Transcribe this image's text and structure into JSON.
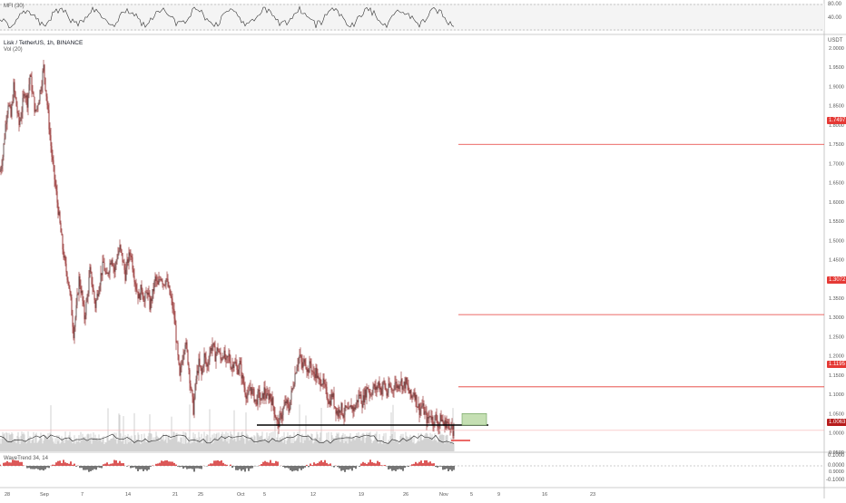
{
  "chart_data": {
    "type": "line",
    "symbol_title": "Lisk / TetherUS, 1h, BINANCE",
    "volume_label": "Vol (20)",
    "mfi_label": "MFI (30)",
    "osc_label": "WaveTrend 34, 14",
    "currency": "USDT",
    "x_ticks": [
      "28",
      "Sep",
      "7",
      "14",
      "21",
      "25",
      "Oct",
      "5",
      "12",
      "19",
      "26",
      "Nov",
      "5",
      "9",
      "16",
      "23"
    ],
    "y_ticks": [
      "2.0000",
      "1.9500",
      "1.9000",
      "1.8500",
      "1.8000",
      "1.7500",
      "1.7000",
      "1.6500",
      "1.6000",
      "1.5500",
      "1.5000",
      "1.4500",
      "1.4000",
      "1.3500",
      "1.3000",
      "1.2500",
      "1.2000",
      "1.1500",
      "1.1000",
      "1.0500",
      "1.0000",
      "0.9500",
      "0.9000"
    ],
    "ylim": [
      0.9,
      2.0
    ],
    "mfi_ticks": [
      "80.00",
      "40.00"
    ],
    "osc_ticks": [
      "0.1000",
      "0.0000",
      "-0.1000"
    ],
    "price_series": [
      {
        "i": 0,
        "v": 1.68
      },
      {
        "i": 3,
        "v": 1.72
      },
      {
        "i": 6,
        "v": 1.8
      },
      {
        "i": 9,
        "v": 1.86
      },
      {
        "i": 12,
        "v": 1.82
      },
      {
        "i": 15,
        "v": 1.9
      },
      {
        "i": 18,
        "v": 1.85
      },
      {
        "i": 21,
        "v": 1.8
      },
      {
        "i": 24,
        "v": 1.84
      },
      {
        "i": 27,
        "v": 1.89
      },
      {
        "i": 30,
        "v": 1.86
      },
      {
        "i": 33,
        "v": 1.93
      },
      {
        "i": 36,
        "v": 1.88
      },
      {
        "i": 39,
        "v": 1.83
      },
      {
        "i": 42,
        "v": 1.86
      },
      {
        "i": 45,
        "v": 1.9
      },
      {
        "i": 48,
        "v": 1.95
      },
      {
        "i": 51,
        "v": 1.88
      },
      {
        "i": 54,
        "v": 1.8
      },
      {
        "i": 57,
        "v": 1.72
      },
      {
        "i": 60,
        "v": 1.66
      },
      {
        "i": 63,
        "v": 1.6
      },
      {
        "i": 66,
        "v": 1.54
      },
      {
        "i": 69,
        "v": 1.48
      },
      {
        "i": 72,
        "v": 1.43
      },
      {
        "i": 75,
        "v": 1.4
      },
      {
        "i": 78,
        "v": 1.34
      },
      {
        "i": 81,
        "v": 1.26
      },
      {
        "i": 84,
        "v": 1.32
      },
      {
        "i": 87,
        "v": 1.4
      },
      {
        "i": 90,
        "v": 1.36
      },
      {
        "i": 93,
        "v": 1.3
      },
      {
        "i": 96,
        "v": 1.35
      },
      {
        "i": 99,
        "v": 1.42
      },
      {
        "i": 102,
        "v": 1.38
      },
      {
        "i": 105,
        "v": 1.33
      },
      {
        "i": 108,
        "v": 1.37
      },
      {
        "i": 111,
        "v": 1.41
      },
      {
        "i": 114,
        "v": 1.44
      },
      {
        "i": 117,
        "v": 1.4
      },
      {
        "i": 120,
        "v": 1.43
      },
      {
        "i": 123,
        "v": 1.46
      },
      {
        "i": 126,
        "v": 1.42
      },
      {
        "i": 129,
        "v": 1.46
      },
      {
        "i": 132,
        "v": 1.48
      },
      {
        "i": 135,
        "v": 1.45
      },
      {
        "i": 138,
        "v": 1.41
      },
      {
        "i": 141,
        "v": 1.45
      },
      {
        "i": 144,
        "v": 1.47
      },
      {
        "i": 147,
        "v": 1.42
      },
      {
        "i": 150,
        "v": 1.38
      },
      {
        "i": 153,
        "v": 1.35
      },
      {
        "i": 156,
        "v": 1.38
      },
      {
        "i": 159,
        "v": 1.34
      },
      {
        "i": 162,
        "v": 1.37
      },
      {
        "i": 165,
        "v": 1.33
      },
      {
        "i": 168,
        "v": 1.36
      },
      {
        "i": 171,
        "v": 1.4
      },
      {
        "i": 174,
        "v": 1.38
      },
      {
        "i": 177,
        "v": 1.41
      },
      {
        "i": 180,
        "v": 1.39
      },
      {
        "i": 183,
        "v": 1.4
      },
      {
        "i": 186,
        "v": 1.37
      },
      {
        "i": 189,
        "v": 1.34
      },
      {
        "i": 192,
        "v": 1.3
      },
      {
        "i": 195,
        "v": 1.22
      },
      {
        "i": 198,
        "v": 1.14
      },
      {
        "i": 201,
        "v": 1.2
      },
      {
        "i": 204,
        "v": 1.24
      },
      {
        "i": 207,
        "v": 1.19
      },
      {
        "i": 210,
        "v": 1.12
      },
      {
        "i": 213,
        "v": 1.06
      },
      {
        "i": 216,
        "v": 1.14
      },
      {
        "i": 219,
        "v": 1.18
      },
      {
        "i": 222,
        "v": 1.15
      },
      {
        "i": 225,
        "v": 1.2
      },
      {
        "i": 228,
        "v": 1.17
      },
      {
        "i": 231,
        "v": 1.21
      },
      {
        "i": 234,
        "v": 1.23
      },
      {
        "i": 237,
        "v": 1.2
      },
      {
        "i": 240,
        "v": 1.22
      },
      {
        "i": 243,
        "v": 1.19
      },
      {
        "i": 246,
        "v": 1.21
      },
      {
        "i": 249,
        "v": 1.18
      },
      {
        "i": 252,
        "v": 1.2
      },
      {
        "i": 255,
        "v": 1.17
      },
      {
        "i": 258,
        "v": 1.19
      },
      {
        "i": 261,
        "v": 1.16
      },
      {
        "i": 264,
        "v": 1.18
      },
      {
        "i": 267,
        "v": 1.14
      },
      {
        "i": 270,
        "v": 1.11
      },
      {
        "i": 273,
        "v": 1.09
      },
      {
        "i": 276,
        "v": 1.12
      },
      {
        "i": 279,
        "v": 1.1
      },
      {
        "i": 282,
        "v": 1.08
      },
      {
        "i": 285,
        "v": 1.1
      },
      {
        "i": 288,
        "v": 1.08
      },
      {
        "i": 291,
        "v": 1.11
      },
      {
        "i": 294,
        "v": 1.09
      },
      {
        "i": 297,
        "v": 1.1
      },
      {
        "i": 300,
        "v": 1.08
      },
      {
        "i": 303,
        "v": 1.05
      },
      {
        "i": 306,
        "v": 1.02
      },
      {
        "i": 309,
        "v": 1.04
      },
      {
        "i": 312,
        "v": 1.06
      },
      {
        "i": 315,
        "v": 1.08
      },
      {
        "i": 318,
        "v": 1.06
      },
      {
        "i": 321,
        "v": 1.1
      },
      {
        "i": 324,
        "v": 1.14
      },
      {
        "i": 327,
        "v": 1.18
      },
      {
        "i": 330,
        "v": 1.2
      },
      {
        "i": 333,
        "v": 1.17
      },
      {
        "i": 336,
        "v": 1.19
      },
      {
        "i": 339,
        "v": 1.16
      },
      {
        "i": 342,
        "v": 1.18
      },
      {
        "i": 345,
        "v": 1.15
      },
      {
        "i": 348,
        "v": 1.16
      },
      {
        "i": 351,
        "v": 1.13
      },
      {
        "i": 354,
        "v": 1.14
      },
      {
        "i": 357,
        "v": 1.12
      },
      {
        "i": 360,
        "v": 1.1
      },
      {
        "i": 363,
        "v": 1.08
      },
      {
        "i": 366,
        "v": 1.1
      },
      {
        "i": 369,
        "v": 1.07
      },
      {
        "i": 372,
        "v": 1.05
      },
      {
        "i": 375,
        "v": 1.07
      },
      {
        "i": 378,
        "v": 1.05
      },
      {
        "i": 381,
        "v": 1.06
      },
      {
        "i": 384,
        "v": 1.05
      },
      {
        "i": 387,
        "v": 1.07
      },
      {
        "i": 390,
        "v": 1.06
      },
      {
        "i": 393,
        "v": 1.08
      },
      {
        "i": 396,
        "v": 1.1
      },
      {
        "i": 399,
        "v": 1.08
      },
      {
        "i": 402,
        "v": 1.1
      },
      {
        "i": 405,
        "v": 1.12
      },
      {
        "i": 408,
        "v": 1.1
      },
      {
        "i": 411,
        "v": 1.12
      },
      {
        "i": 414,
        "v": 1.11
      },
      {
        "i": 417,
        "v": 1.13
      },
      {
        "i": 420,
        "v": 1.11
      },
      {
        "i": 423,
        "v": 1.13
      },
      {
        "i": 426,
        "v": 1.1
      },
      {
        "i": 429,
        "v": 1.12
      },
      {
        "i": 432,
        "v": 1.11
      },
      {
        "i": 435,
        "v": 1.13
      },
      {
        "i": 438,
        "v": 1.12
      },
      {
        "i": 441,
        "v": 1.14
      },
      {
        "i": 444,
        "v": 1.12
      },
      {
        "i": 447,
        "v": 1.13
      },
      {
        "i": 450,
        "v": 1.11
      },
      {
        "i": 453,
        "v": 1.09
      },
      {
        "i": 456,
        "v": 1.11
      },
      {
        "i": 459,
        "v": 1.08
      },
      {
        "i": 462,
        "v": 1.06
      },
      {
        "i": 465,
        "v": 1.07
      },
      {
        "i": 468,
        "v": 1.05
      },
      {
        "i": 471,
        "v": 1.03
      },
      {
        "i": 474,
        "v": 1.05
      },
      {
        "i": 477,
        "v": 1.03
      },
      {
        "i": 480,
        "v": 1.04
      },
      {
        "i": 483,
        "v": 1.02
      },
      {
        "i": 486,
        "v": 1.04
      },
      {
        "i": 489,
        "v": 1.02
      },
      {
        "i": 492,
        "v": 1.03
      },
      {
        "i": 495,
        "v": 1.01
      },
      {
        "i": 497,
        "v": 1.035
      },
      {
        "i": 499,
        "v": 0.99
      },
      {
        "i": 500,
        "v": 1.0063
      }
    ],
    "levels": [
      {
        "price": 1.7497,
        "label": "1.7497",
        "color": "#e53935"
      },
      {
        "price": 1.3072,
        "label": "1.3072",
        "color": "#e53935"
      },
      {
        "price": 1.1195,
        "label": "1.1195",
        "color": "#e53935"
      },
      {
        "price": 1.0063,
        "label": "1.0063",
        "color": "#b71c1c"
      }
    ],
    "support_level": 1.02,
    "target_zone": [
      1.02,
      1.05
    ],
    "stop_level": 0.98,
    "colors": {
      "candle": "#8b1c1c",
      "level": "#e53935",
      "support": "#000000",
      "target_fill": "#c5dfb3",
      "target_border": "#6a9f58",
      "volume": "#c8c8c8",
      "osc_pos": "#d32f2f",
      "osc_neg": "#555555"
    }
  }
}
